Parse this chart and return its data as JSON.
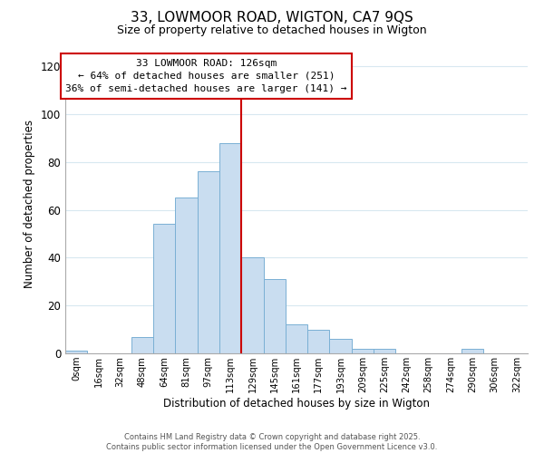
{
  "title": "33, LOWMOOR ROAD, WIGTON, CA7 9QS",
  "subtitle": "Size of property relative to detached houses in Wigton",
  "xlabel": "Distribution of detached houses by size in Wigton",
  "ylabel": "Number of detached properties",
  "bar_labels": [
    "0sqm",
    "16sqm",
    "32sqm",
    "48sqm",
    "64sqm",
    "81sqm",
    "97sqm",
    "113sqm",
    "129sqm",
    "145sqm",
    "161sqm",
    "177sqm",
    "193sqm",
    "209sqm",
    "225sqm",
    "242sqm",
    "258sqm",
    "274sqm",
    "290sqm",
    "306sqm",
    "322sqm"
  ],
  "bar_values": [
    1,
    0,
    0,
    7,
    54,
    65,
    76,
    88,
    40,
    31,
    12,
    10,
    6,
    2,
    2,
    0,
    0,
    0,
    2,
    0,
    0
  ],
  "bar_color": "#c9ddf0",
  "bar_edge_color": "#7ab0d4",
  "vline_x": 8,
  "vline_color": "#cc0000",
  "annotation_title": "33 LOWMOOR ROAD: 126sqm",
  "annotation_line1": "← 64% of detached houses are smaller (251)",
  "annotation_line2": "36% of semi-detached houses are larger (141) →",
  "annotation_box_color": "#ffffff",
  "annotation_box_edge": "#cc0000",
  "ylim": [
    0,
    125
  ],
  "yticks": [
    0,
    20,
    40,
    60,
    80,
    100,
    120
  ],
  "footer_line1": "Contains HM Land Registry data © Crown copyright and database right 2025.",
  "footer_line2": "Contains public sector information licensed under the Open Government Licence v3.0.",
  "background_color": "#ffffff",
  "grid_color": "#d8e8f0"
}
